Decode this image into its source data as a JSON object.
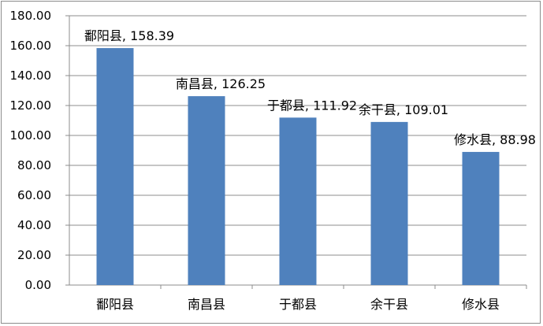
{
  "chart_data": {
    "type": "bar",
    "categories": [
      "鄱阳县",
      "南昌县",
      "于都县",
      "余干县",
      "修水县"
    ],
    "values": [
      158.39,
      126.25,
      111.92,
      109.01,
      88.98
    ],
    "data_labels": [
      "鄱阳县, 158.39",
      "南昌县, 126.25",
      "于都县, 111.92",
      "余干县, 109.01",
      "修水县, 88.98"
    ],
    "y_ticks": [
      "0.00",
      "20.00",
      "40.00",
      "60.00",
      "80.00",
      "100.00",
      "120.00",
      "140.00",
      "160.00",
      "180.00"
    ],
    "ylim": [
      0,
      180
    ],
    "grid": true,
    "legend": "none",
    "colors": {
      "bar": "#4f81bd",
      "grid": "#8c8c8c"
    }
  }
}
